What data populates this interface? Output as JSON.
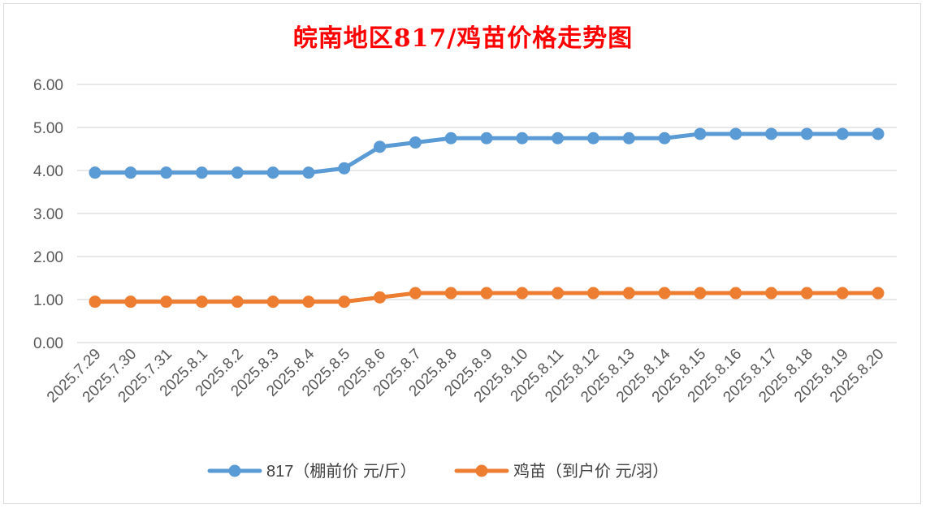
{
  "colors": {
    "title": "#ff0000",
    "grid": "#d9d9d9",
    "text": "#595959",
    "series_817": "#5b9bd5",
    "series_chick": "#ed7d31"
  },
  "chart_data": {
    "type": "line",
    "title": "皖南地区817/鸡苗价格走势图",
    "xlabel": "",
    "ylabel": "",
    "ylim": [
      0,
      6
    ],
    "yticks": [
      "0.00",
      "1.00",
      "2.00",
      "3.00",
      "4.00",
      "5.00",
      "6.00"
    ],
    "grid": "horizontal",
    "legend_position": "bottom",
    "categories": [
      "2025.7.29",
      "2025.7.30",
      "2025.7.31",
      "2025.8.1",
      "2025.8.2",
      "2025.8.3",
      "2025.8.4",
      "2025.8.5",
      "2025.8.6",
      "2025.8.7",
      "2025.8.8",
      "2025.8.9",
      "2025.8.10",
      "2025.8.11",
      "2025.8.12",
      "2025.8.13",
      "2025.8.14",
      "2025.8.15",
      "2025.8.16",
      "2025.8.17",
      "2025.8.18",
      "2025.8.19",
      "2025.8.20"
    ],
    "series": [
      {
        "name": "817（棚前价 元/斤）",
        "color": "#5b9bd5",
        "values": [
          3.95,
          3.95,
          3.95,
          3.95,
          3.95,
          3.95,
          3.95,
          4.05,
          4.55,
          4.65,
          4.75,
          4.75,
          4.75,
          4.75,
          4.75,
          4.75,
          4.75,
          4.85,
          4.85,
          4.85,
          4.85,
          4.85,
          4.85
        ]
      },
      {
        "name": "鸡苗（到户价 元/羽）",
        "color": "#ed7d31",
        "values": [
          0.95,
          0.95,
          0.95,
          0.95,
          0.95,
          0.95,
          0.95,
          0.95,
          1.05,
          1.15,
          1.15,
          1.15,
          1.15,
          1.15,
          1.15,
          1.15,
          1.15,
          1.15,
          1.15,
          1.15,
          1.15,
          1.15,
          1.15
        ]
      }
    ]
  }
}
